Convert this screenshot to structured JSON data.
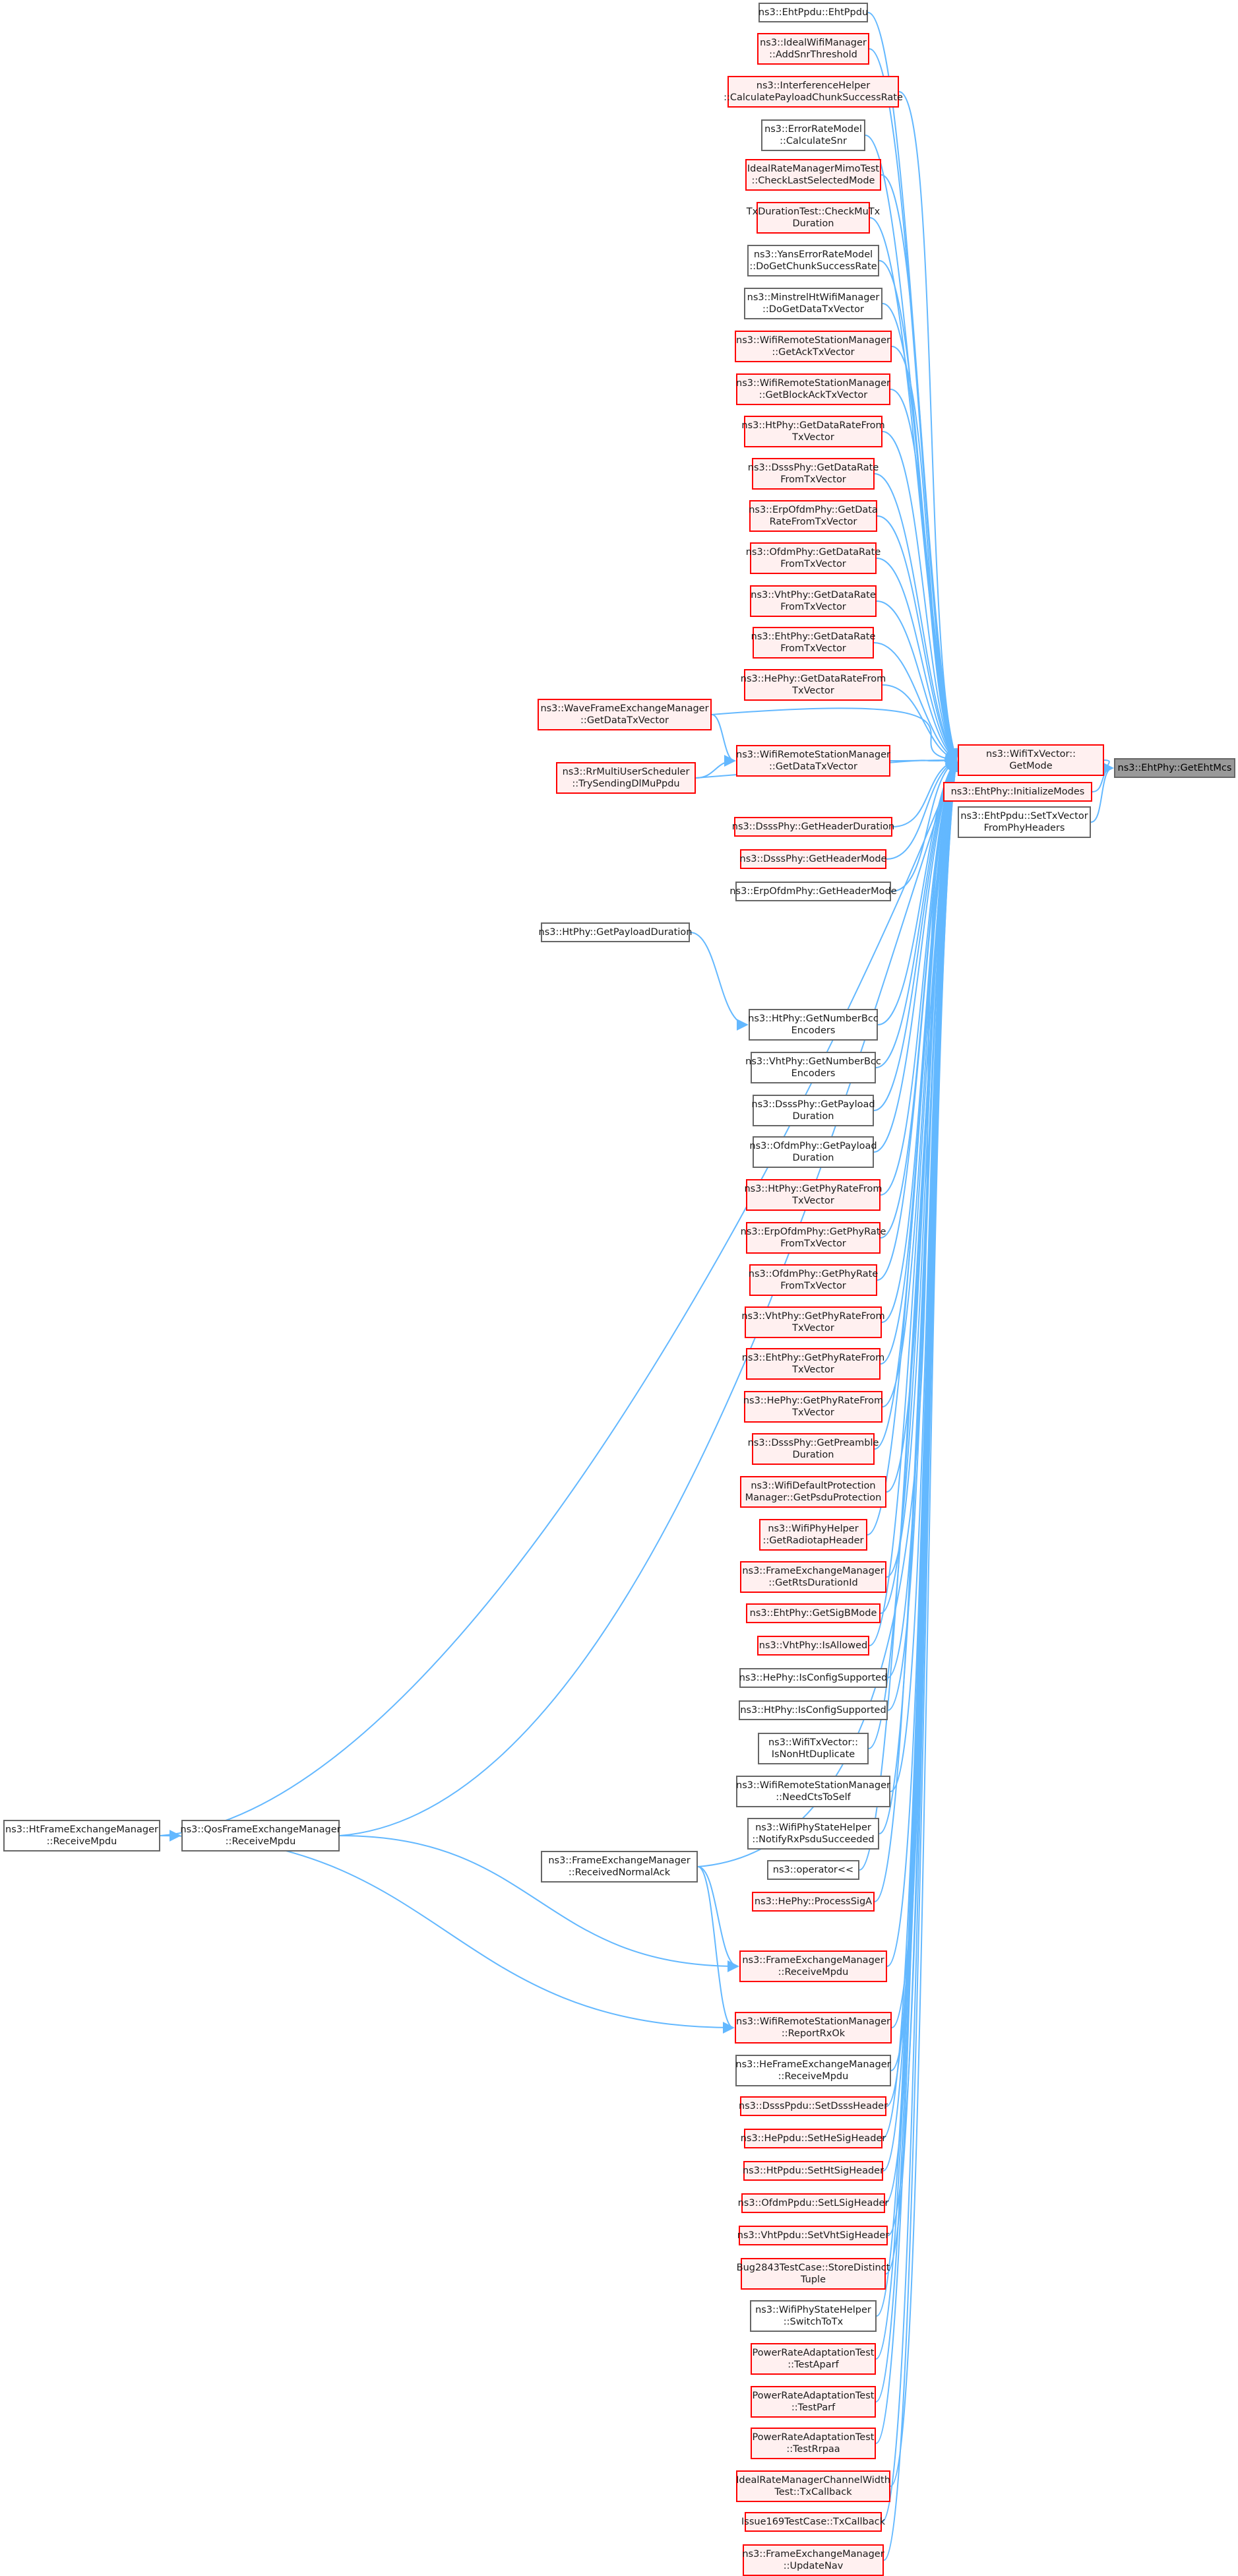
{
  "colors": {
    "edge": "#63b8ff",
    "border_normal": "#666666",
    "border_red": "#ff0000",
    "fill_red": "#fff0f0",
    "fill_root": "#999999"
  },
  "root": {
    "label": "ns3::EhtPhy::GetEhtMcs"
  },
  "callers": [
    {
      "label": "ns3::WifiTxVector::\nGetMode",
      "red": true
    },
    {
      "label": "ns3::EhtPhy::InitializeModes",
      "red": true
    },
    {
      "label": "ns3::EhtPpdu::SetTxVector\nFromPhyHeaders",
      "red": false
    }
  ],
  "getmode_callers": [
    {
      "label": "ns3::EhtPpdu::EhtPpdu",
      "red": false
    },
    {
      "label": "ns3::IdealWifiManager\n::AddSnrThreshold",
      "red": true
    },
    {
      "label": "ns3::InterferenceHelper\n::CalculatePayloadChunkSuccessRate",
      "red": true
    },
    {
      "label": "ns3::ErrorRateModel\n::CalculateSnr",
      "red": false
    },
    {
      "label": "IdealRateManagerMimoTest\n::CheckLastSelectedMode",
      "red": true
    },
    {
      "label": "TxDurationTest::CheckMuTx\nDuration",
      "red": true
    },
    {
      "label": "ns3::YansErrorRateModel\n::DoGetChunkSuccessRate",
      "red": false
    },
    {
      "label": "ns3::MinstrelHtWifiManager\n::DoGetDataTxVector",
      "red": false
    },
    {
      "label": "ns3::WifiRemoteStationManager\n::GetAckTxVector",
      "red": true
    },
    {
      "label": "ns3::WifiRemoteStationManager\n::GetBlockAckTxVector",
      "red": true
    },
    {
      "label": "ns3::HtPhy::GetDataRateFrom\nTxVector",
      "red": true
    },
    {
      "label": "ns3::DsssPhy::GetDataRate\nFromTxVector",
      "red": true
    },
    {
      "label": "ns3::ErpOfdmPhy::GetData\nRateFromTxVector",
      "red": true
    },
    {
      "label": "ns3::OfdmPhy::GetDataRate\nFromTxVector",
      "red": true
    },
    {
      "label": "ns3::VhtPhy::GetDataRate\nFromTxVector",
      "red": true
    },
    {
      "label": "ns3::EhtPhy::GetDataRate\nFromTxVector",
      "red": true
    },
    {
      "label": "ns3::HePhy::GetDataRateFrom\nTxVector",
      "red": true
    },
    {
      "label": "ns3::WifiRemoteStationManager\n::GetDataTxVector",
      "red": true
    },
    {
      "label": "ns3::DsssPhy::GetHeaderDuration",
      "red": true
    },
    {
      "label": "ns3::DsssPhy::GetHeaderMode",
      "red": true
    },
    {
      "label": "ns3::ErpOfdmPhy::GetHeaderMode",
      "red": false
    },
    {
      "label": "ns3::HtPhy::GetNumberBcc\nEncoders",
      "red": false
    },
    {
      "label": "ns3::VhtPhy::GetNumberBcc\nEncoders",
      "red": false
    },
    {
      "label": "ns3::DsssPhy::GetPayload\nDuration",
      "red": false
    },
    {
      "label": "ns3::OfdmPhy::GetPayload\nDuration",
      "red": false
    },
    {
      "label": "ns3::HtPhy::GetPhyRateFrom\nTxVector",
      "red": true
    },
    {
      "label": "ns3::ErpOfdmPhy::GetPhyRate\nFromTxVector",
      "red": true
    },
    {
      "label": "ns3::OfdmPhy::GetPhyRate\nFromTxVector",
      "red": true
    },
    {
      "label": "ns3::VhtPhy::GetPhyRateFrom\nTxVector",
      "red": true
    },
    {
      "label": "ns3::EhtPhy::GetPhyRateFrom\nTxVector",
      "red": true
    },
    {
      "label": "ns3::HePhy::GetPhyRateFrom\nTxVector",
      "red": true
    },
    {
      "label": "ns3::DsssPhy::GetPreamble\nDuration",
      "red": true
    },
    {
      "label": "ns3::WifiDefaultProtection\nManager::GetPsduProtection",
      "red": true
    },
    {
      "label": "ns3::WifiPhyHelper\n::GetRadiotapHeader",
      "red": true
    },
    {
      "label": "ns3::FrameExchangeManager\n::GetRtsDurationId",
      "red": true
    },
    {
      "label": "ns3::EhtPhy::GetSigBMode",
      "red": true
    },
    {
      "label": "ns3::VhtPhy::IsAllowed",
      "red": true
    },
    {
      "label": "ns3::HePhy::IsConfigSupported",
      "red": false
    },
    {
      "label": "ns3::HtPhy::IsConfigSupported",
      "red": false
    },
    {
      "label": "ns3::WifiTxVector::\nIsNonHtDuplicate",
      "red": false
    },
    {
      "label": "ns3::WifiRemoteStationManager\n::NeedCtsToSelf",
      "red": false
    },
    {
      "label": "ns3::WifiPhyStateHelper\n::NotifyRxPsduSucceeded",
      "red": false
    },
    {
      "label": "ns3::operator<<",
      "red": false
    },
    {
      "label": "ns3::HePhy::ProcessSigA",
      "red": true
    },
    {
      "label": "ns3::FrameExchangeManager\n::ReceiveMpdu",
      "red": true
    },
    {
      "label": "ns3::WifiRemoteStationManager\n::ReportRxOk",
      "red": true
    },
    {
      "label": "ns3::HeFrameExchangeManager\n::ReceiveMpdu",
      "red": false
    },
    {
      "label": "ns3::DsssPpdu::SetDsssHeader",
      "red": true
    },
    {
      "label": "ns3::HePpdu::SetHeSigHeader",
      "red": true
    },
    {
      "label": "ns3::HtPpdu::SetHtSigHeader",
      "red": true
    },
    {
      "label": "ns3::OfdmPpdu::SetLSigHeader",
      "red": true
    },
    {
      "label": "ns3::VhtPpdu::SetVhtSigHeader",
      "red": true
    },
    {
      "label": "Bug2843TestCase::StoreDistinct\nTuple",
      "red": true
    },
    {
      "label": "ns3::WifiPhyStateHelper\n::SwitchToTx",
      "red": false
    },
    {
      "label": "PowerRateAdaptationTest\n::TestAparf",
      "red": true
    },
    {
      "label": "PowerRateAdaptationTest\n::TestParf",
      "red": true
    },
    {
      "label": "PowerRateAdaptationTest\n::TestRrpaa",
      "red": true
    },
    {
      "label": "IdealRateManagerChannelWidth\nTest::TxCallback",
      "red": true
    },
    {
      "label": "Issue169TestCase::TxCallback",
      "red": true
    },
    {
      "label": "ns3::FrameExchangeManager\n::UpdateNav",
      "red": true
    }
  ],
  "secondary": [
    {
      "label": "ns3::WaveFrameExchangeManager\n::GetDataTxVector",
      "red": true
    },
    {
      "label": "ns3::RrMultiUserScheduler\n::TrySendingDlMuPpdu",
      "red": true
    },
    {
      "label": "ns3::HtPhy::GetPayloadDuration",
      "red": false
    },
    {
      "label": "ns3::HtFrameExchangeManager\n::ReceiveMpdu",
      "red": false
    },
    {
      "label": "ns3::QosFrameExchangeManager\n::ReceiveMpdu",
      "red": false
    },
    {
      "label": "ns3::FrameExchangeManager\n::ReceivedNormalAck",
      "red": false
    }
  ]
}
